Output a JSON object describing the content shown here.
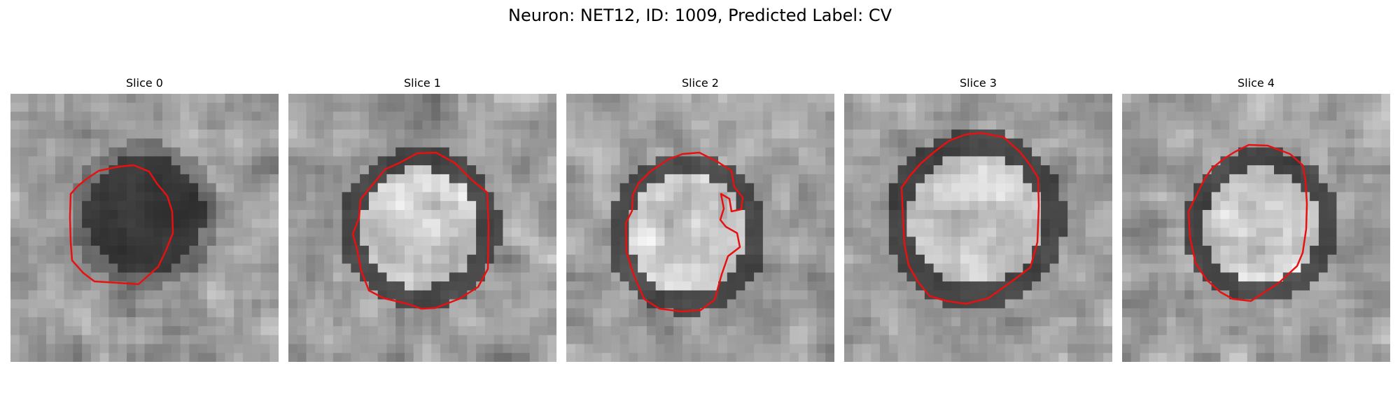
{
  "figure": {
    "title": "Neuron: NET12, ID: 1009, Predicted Label: CV"
  },
  "colors": {
    "contour": "#e81010",
    "background": "#ffffff"
  },
  "panels": [
    {
      "label": "Slice 0",
      "image_type": "grayscale-em-patch",
      "dark_center": true
    },
    {
      "label": "Slice 1",
      "image_type": "grayscale-em-patch",
      "dark_center": false
    },
    {
      "label": "Slice 2",
      "image_type": "grayscale-em-patch",
      "dark_center": false
    },
    {
      "label": "Slice 3",
      "image_type": "grayscale-em-patch",
      "dark_center": false
    },
    {
      "label": "Slice 4",
      "image_type": "grayscale-em-patch",
      "dark_center": false
    }
  ]
}
